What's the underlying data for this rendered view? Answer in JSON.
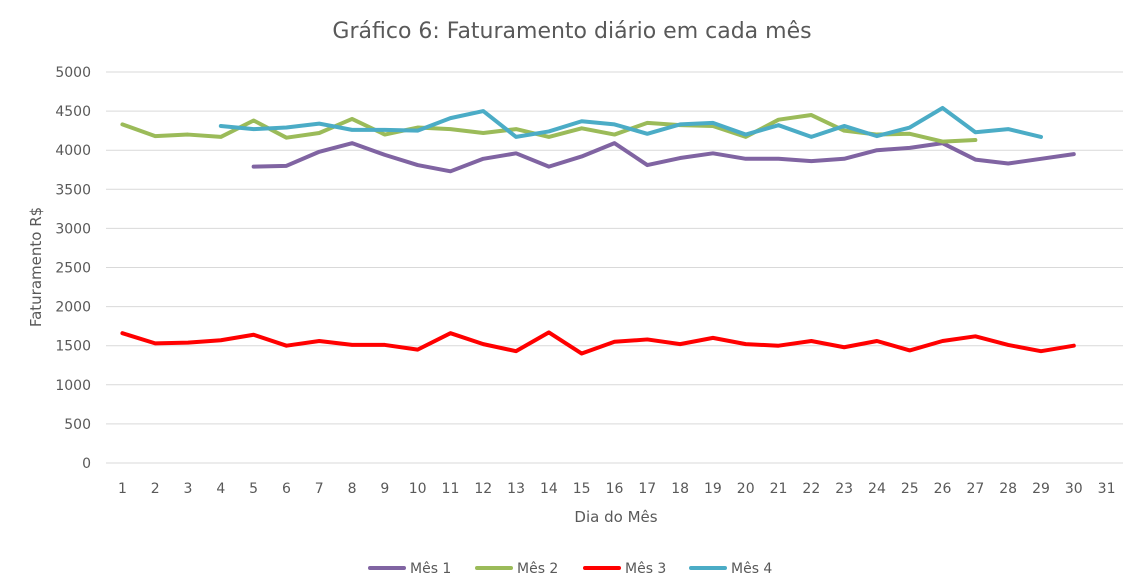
{
  "chart_data": {
    "type": "line",
    "title": "Gráfico 6: Faturamento diário em cada mês",
    "xlabel": "Dia do Mês",
    "ylabel": "Faturamento R$",
    "categories": [
      "1",
      "2",
      "3",
      "4",
      "5",
      "6",
      "7",
      "8",
      "9",
      "10",
      "11",
      "12",
      "13",
      "14",
      "15",
      "16",
      "17",
      "18",
      "19",
      "20",
      "21",
      "22",
      "23",
      "24",
      "25",
      "26",
      "27",
      "28",
      "29",
      "30",
      "31"
    ],
    "ylim": [
      0,
      5000
    ],
    "yticks": [
      0,
      500,
      1000,
      1500,
      2000,
      2500,
      3000,
      3500,
      4000,
      4500,
      5000
    ],
    "grid": true,
    "legend_position": "bottom",
    "series": [
      {
        "name": "Mês 1",
        "color": "#8064a2",
        "values": [
          null,
          null,
          null,
          null,
          3790,
          3800,
          3980,
          4090,
          3940,
          3810,
          3730,
          3890,
          3960,
          3790,
          3920,
          4090,
          3810,
          3900,
          3960,
          3890,
          3890,
          3860,
          3890,
          4000,
          4030,
          4090,
          3880,
          3830,
          3890,
          3950,
          null
        ]
      },
      {
        "name": "Mês 2",
        "color": "#9bbb59",
        "values": [
          4330,
          4180,
          4200,
          4170,
          4380,
          4160,
          4220,
          4400,
          4200,
          4290,
          4270,
          4220,
          4270,
          4170,
          4280,
          4200,
          4350,
          4320,
          4310,
          4170,
          4390,
          4450,
          4250,
          4200,
          4210,
          4110,
          4130,
          null,
          null,
          null,
          null
        ]
      },
      {
        "name": "Mês 3",
        "color": "#ff0000",
        "values": [
          1660,
          1530,
          1540,
          1570,
          1640,
          1500,
          1560,
          1510,
          1510,
          1450,
          1660,
          1520,
          1430,
          1670,
          1400,
          1550,
          1580,
          1520,
          1600,
          1520,
          1500,
          1560,
          1480,
          1560,
          1440,
          1560,
          1620,
          1510,
          1430,
          1500,
          null
        ]
      },
      {
        "name": "Mês 4",
        "color": "#4bacc6",
        "values": [
          null,
          null,
          null,
          4310,
          4270,
          4290,
          4340,
          4260,
          4260,
          4250,
          4410,
          4500,
          4170,
          4240,
          4370,
          4330,
          4210,
          4330,
          4350,
          4200,
          4320,
          4170,
          4310,
          4180,
          4290,
          4540,
          4230,
          4270,
          4170,
          null,
          null
        ]
      }
    ]
  }
}
